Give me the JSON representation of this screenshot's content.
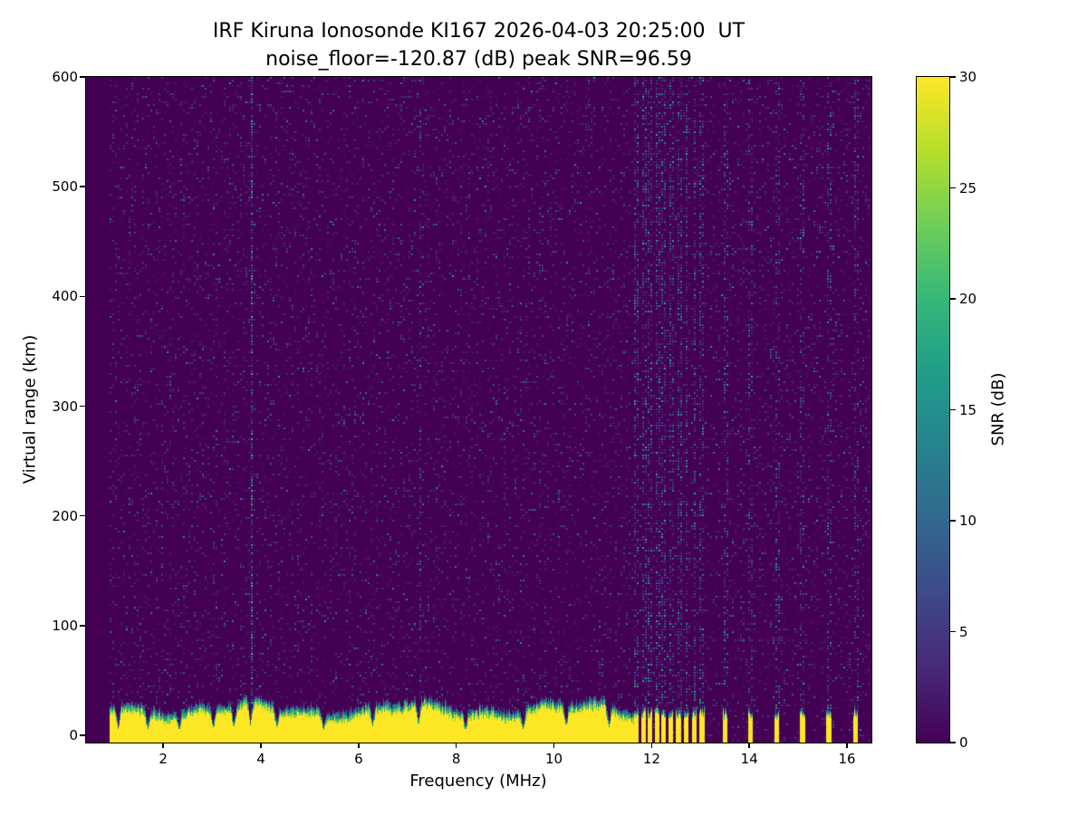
{
  "figure": {
    "title_line1": "IRF Kiruna Ionosonde KI167 2026-04-03 20:25:00  UT",
    "title_line2": "noise_floor=-120.87 (dB) peak SNR=96.59",
    "xlabel": "Frequency (MHz)",
    "ylabel": "Virtual range (km)",
    "colorbar_label": "SNR (dB)"
  },
  "chart_data": {
    "type": "heatmap",
    "title": "IRF Kiruna Ionosonde KI167 2026-04-03 20:25:00  UT",
    "subtitle": "noise_floor=-120.87 (dB) peak SNR=96.59",
    "station": "IRF Kiruna Ionosonde KI167",
    "timestamp_ut": "2026-04-03 20:25:00",
    "noise_floor_db": -120.87,
    "peak_snr_db": 96.59,
    "xlabel": "Frequency (MHz)",
    "ylabel": "Virtual range (km)",
    "x_range_mhz": [
      0.42,
      16.5
    ],
    "y_range_km": [
      -6.5,
      600
    ],
    "x_ticks": [
      2,
      4,
      6,
      8,
      10,
      12,
      14,
      16
    ],
    "y_ticks": [
      0,
      100,
      200,
      300,
      400,
      500,
      600
    ],
    "grid": false,
    "colorbar": {
      "label": "SNR (dB)",
      "min": 0,
      "max": 30,
      "ticks": [
        0,
        5,
        10,
        15,
        20,
        25,
        30
      ],
      "colormap": "viridis",
      "viridis_stops": [
        "#440154",
        "#482878",
        "#3e4989",
        "#31688e",
        "#26828e",
        "#1f9e89",
        "#35b779",
        "#6ece58",
        "#b5de2b",
        "#fde725"
      ]
    },
    "features": {
      "data_freq_range_mhz": [
        0.9,
        16.45
      ],
      "background_snr_db": 0,
      "noise_speckle": {
        "probability": 0.22,
        "mean_db": 3.0,
        "max_db": 16
      },
      "ground_echo_band": {
        "freq_range_mhz": [
          0.9,
          11.62
        ],
        "top_range_km": 45,
        "snr_db": 30
      },
      "band_notch_freqs_mhz": [
        1.07,
        1.68,
        2.32,
        3.02,
        3.44,
        3.78,
        4.32,
        5.28,
        6.28,
        7.22,
        8.18,
        9.36,
        10.24,
        11.12
      ],
      "rfi_bars": {
        "bar_width_mhz": 0.08,
        "cluster_freqs_mhz": [
          11.68,
          11.82,
          11.96,
          12.1,
          12.24,
          12.38,
          12.54,
          12.7,
          12.86,
          13.02
        ],
        "isolated_freqs_mhz": [
          13.5,
          14.02,
          14.55,
          15.08,
          15.62,
          16.16
        ]
      },
      "enhanced_columns": [
        {
          "f": 3.78,
          "w": 0.04,
          "boost": 4.5
        },
        {
          "f": 7.25,
          "w": 0.025,
          "boost": 1.5
        },
        {
          "f": 1.65,
          "w": 0.02,
          "boost": 1.2
        }
      ]
    }
  }
}
